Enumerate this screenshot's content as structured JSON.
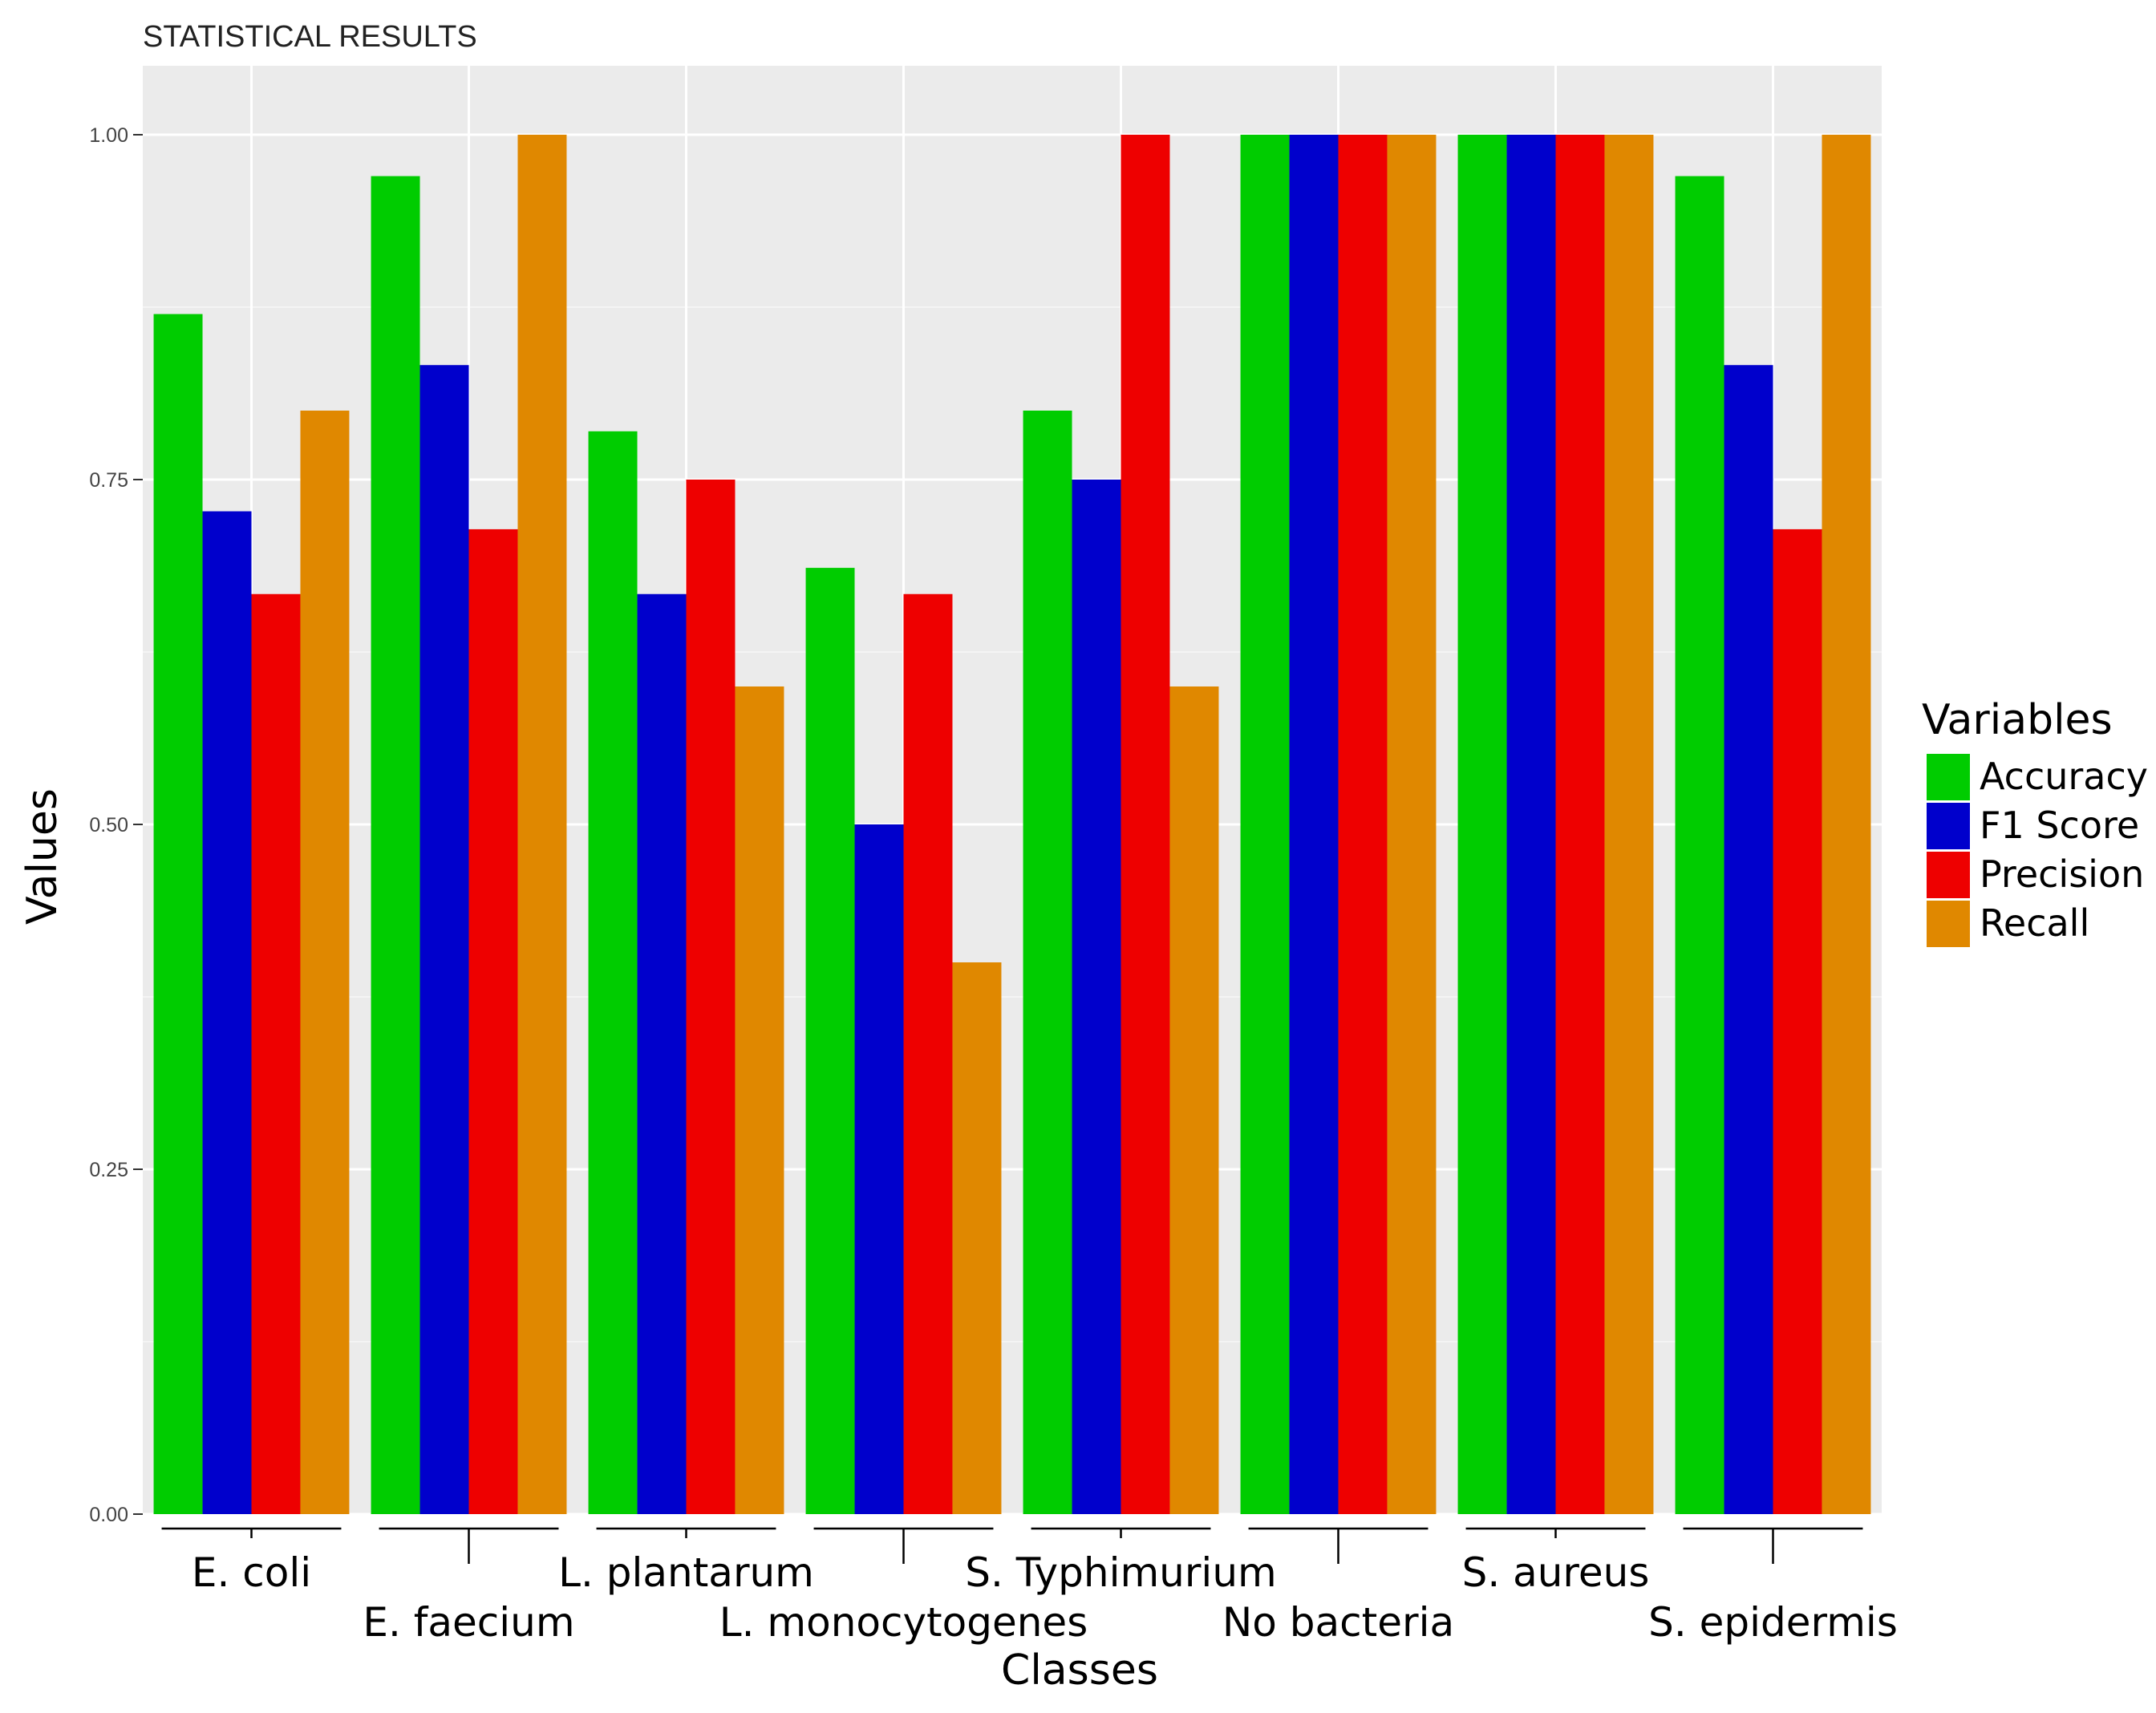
{
  "chart_data": {
    "type": "bar",
    "title": "STATISTICAL RESULTS",
    "xlabel": "Classes",
    "ylabel": "Values",
    "ylim": [
      0,
      1.05
    ],
    "yticks": [
      0.0,
      0.25,
      0.5,
      0.75,
      1.0
    ],
    "ytick_labels": [
      "0.00",
      "0.25",
      "0.50",
      "0.75",
      "1.00"
    ],
    "grid": true,
    "legend_title": "Variables",
    "legend_position": "right",
    "categories": [
      "E. coli",
      "E. faecium",
      "L. plantarum",
      "L. monocytogenes",
      "S. Typhimurium",
      "No bacteria",
      "S. aureus",
      "S. epidermis"
    ],
    "series": [
      {
        "name": "Accuracy",
        "color": "#00cc00",
        "values": [
          0.87,
          0.97,
          0.785,
          0.686,
          0.8,
          1.0,
          1.0,
          0.97
        ]
      },
      {
        "name": "F1 Score",
        "color": "#0000cc",
        "values": [
          0.727,
          0.833,
          0.667,
          0.5,
          0.75,
          1.0,
          1.0,
          0.833
        ]
      },
      {
        "name": "Precision",
        "color": "#ee0000",
        "values": [
          0.667,
          0.714,
          0.75,
          0.667,
          1.0,
          1.0,
          1.0,
          0.714
        ]
      },
      {
        "name": "Recall",
        "color": "#e08800",
        "values": [
          0.8,
          1.0,
          0.6,
          0.4,
          0.6,
          1.0,
          1.0,
          1.0
        ]
      }
    ]
  }
}
